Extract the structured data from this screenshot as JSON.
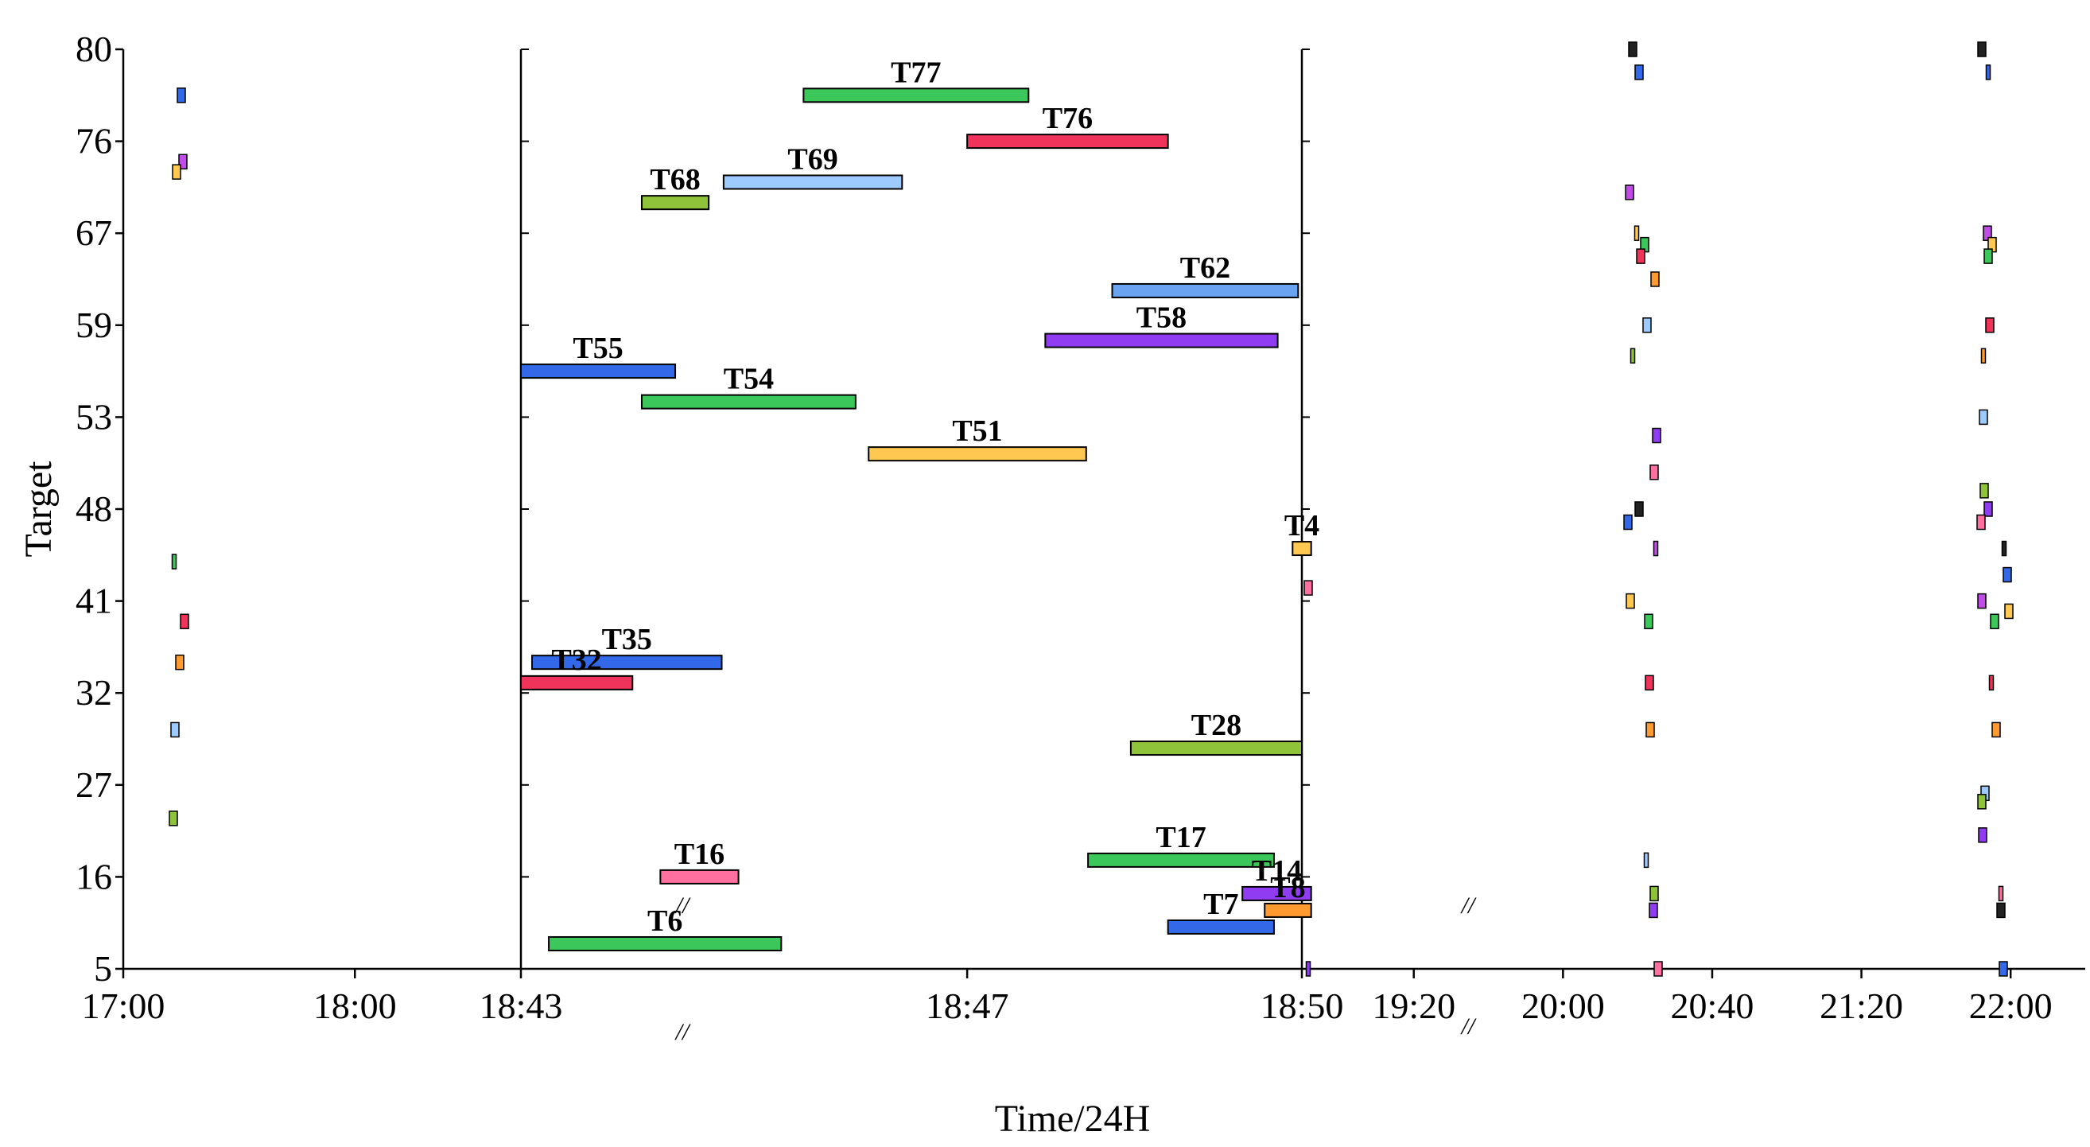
{
  "chart_data": {
    "type": "gantt",
    "title": "",
    "xlabel": "Time/24H",
    "ylabel": "Target",
    "ylim": [
      5,
      80
    ],
    "y_ticks": [
      5,
      16,
      27,
      32,
      41,
      48,
      53,
      59,
      67,
      76,
      80
    ],
    "x_segments": [
      {
        "name": "left",
        "start": "17:00",
        "end": "18:43",
        "ticks": [
          "17:00",
          "18:00",
          "18:43"
        ]
      },
      {
        "name": "middle",
        "start": "18:43",
        "end": "18:50",
        "ticks": [
          "18:43",
          "18:47",
          "18:50"
        ]
      },
      {
        "name": "right",
        "start": "18:50",
        "end": "22:20",
        "ticks": [
          "18:50",
          "19:20",
          "20:00",
          "20:40",
          "21:20",
          "22:00"
        ]
      }
    ],
    "break_marks": [
      "//",
      "//",
      "//",
      "//"
    ],
    "tasks": [
      {
        "name": "T77",
        "target": 78,
        "start": "18:45:32",
        "end": "18:47:33",
        "color": "#3cc75a"
      },
      {
        "name": "T76",
        "target": 76,
        "start": "18:47:00",
        "end": "18:48:48",
        "color": "#f0335a"
      },
      {
        "name": "T69",
        "target": 72,
        "start": "18:44:49",
        "end": "18:46:25",
        "color": "#9ecbff"
      },
      {
        "name": "T68",
        "target": 70,
        "start": "18:44:05",
        "end": "18:44:41",
        "color": "#8fc43a"
      },
      {
        "name": "T62",
        "target": 62,
        "start": "18:48:18",
        "end": "18:49:58",
        "color": "#6aa3f0"
      },
      {
        "name": "T58",
        "target": 58,
        "start": "18:47:42",
        "end": "18:49:47",
        "color": "#8f3cf2"
      },
      {
        "name": "T55",
        "target": 56,
        "start": "18:43:00",
        "end": "18:44:23",
        "color": "#3368e8"
      },
      {
        "name": "T54",
        "target": 54,
        "start": "18:44:05",
        "end": "18:46:00",
        "color": "#3cc75a"
      },
      {
        "name": "T51",
        "target": 51,
        "start": "18:46:07",
        "end": "18:48:04",
        "color": "#ffc850"
      },
      {
        "name": "T4",
        "target": 45,
        "start": "18:49:55",
        "end": "18:50:05",
        "color": "#ffc850"
      },
      {
        "name": "T35",
        "target": 35,
        "start": "18:43:06",
        "end": "18:44:48",
        "color": "#3368e8"
      },
      {
        "name": "T32",
        "target": 33,
        "start": "18:43:00",
        "end": "18:44:00",
        "color": "#f0335a"
      },
      {
        "name": "T28",
        "target": 29,
        "start": "18:48:28",
        "end": "18:50:00",
        "color": "#8fc43a"
      },
      {
        "name": "T17",
        "target": 18,
        "start": "18:48:05",
        "end": "18:49:45",
        "color": "#3cc75a"
      },
      {
        "name": "T16",
        "target": 16,
        "start": "18:44:15",
        "end": "18:44:57",
        "color": "#ff6f9f"
      },
      {
        "name": "T14",
        "target": 14,
        "start": "18:49:28",
        "end": "18:50:05",
        "color": "#8f3cf2"
      },
      {
        "name": "T8",
        "target": 12,
        "start": "18:49:40",
        "end": "18:50:05",
        "color": "#ff9a30"
      },
      {
        "name": "T7",
        "target": 10,
        "start": "18:48:48",
        "end": "18:49:45",
        "color": "#3368e8"
      },
      {
        "name": "T6",
        "target": 8,
        "start": "18:43:15",
        "end": "18:45:20",
        "color": "#3cc75a"
      }
    ],
    "marker_color_palette": [
      "#3368e8",
      "#c24ce8",
      "#ffc850",
      "#3cc75a",
      "#f0335a",
      "#ff9a30",
      "#9ecbff",
      "#8fc43a",
      "#8f3cf2",
      "#ff6f9f",
      "#222222"
    ]
  }
}
